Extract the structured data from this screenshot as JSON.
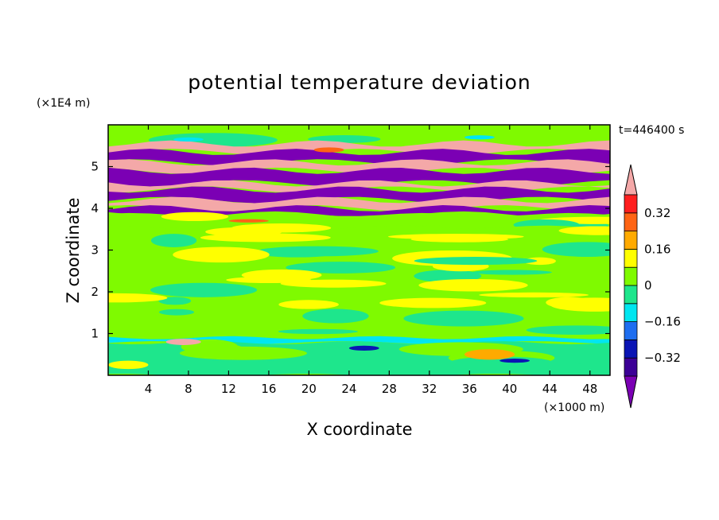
{
  "chart_data": {
    "type": "heatmap",
    "title": "potential temperature deviation",
    "xlabel": "X coordinate",
    "ylabel": "Z coordinate",
    "x_unit": "(×1000 m)",
    "y_unit": "(×1E4 m)",
    "time_label": "t=446400 s",
    "xlim": [
      0,
      50
    ],
    "ylim": [
      0,
      6
    ],
    "x_ticks": [
      4,
      8,
      12,
      16,
      20,
      24,
      28,
      32,
      36,
      40,
      44,
      48
    ],
    "y_ticks": [
      1,
      2,
      3,
      4,
      5
    ],
    "colorbar": {
      "levels": [
        -0.4,
        -0.32,
        -0.24,
        -0.16,
        -0.08,
        0,
        0.08,
        0.16,
        0.24,
        0.32,
        0.4
      ],
      "labeled_ticks": [
        "0.32",
        "0.16",
        "0",
        "−0.16",
        "−0.32"
      ],
      "labeled_values": [
        0.32,
        0.16,
        0,
        -0.16,
        -0.32
      ],
      "colors": [
        "#7b00b4",
        "#3c0096",
        "#0a14b4",
        "#1e6ef0",
        "#00e6f0",
        "#1ee68c",
        "#7ffa00",
        "#ffff00",
        "#ffaa00",
        "#ff6414",
        "#ff1e1e",
        "#f4a8a8"
      ]
    },
    "bands": [
      {
        "z0": 5.95,
        "z1": 6.0,
        "value": 0.04,
        "variation": "wavy"
      },
      {
        "z0": 5.55,
        "z1": 5.95,
        "value": 0.0,
        "variation": "mixed"
      },
      {
        "z0": 5.35,
        "z1": 5.55,
        "value": 0.44,
        "variation": "streaks"
      },
      {
        "z0": 5.1,
        "z1": 5.35,
        "value": -0.44,
        "variation": "streaks"
      },
      {
        "z0": 4.9,
        "z1": 5.1,
        "value": 0.44,
        "variation": "streaks"
      },
      {
        "z0": 4.6,
        "z1": 4.9,
        "value": -0.44,
        "variation": "streaks"
      },
      {
        "z0": 4.45,
        "z1": 4.6,
        "value": 0.44,
        "variation": "streaks"
      },
      {
        "z0": 4.2,
        "z1": 4.45,
        "value": -0.44,
        "variation": "streaks"
      },
      {
        "z0": 4.0,
        "z1": 4.2,
        "value": 0.44,
        "variation": "streaks"
      },
      {
        "z0": 3.85,
        "z1": 4.0,
        "value": -0.44,
        "variation": "streaks"
      },
      {
        "z0": 3.55,
        "z1": 3.85,
        "value": 0.04,
        "variation": "mixed"
      },
      {
        "z0": 0.9,
        "z1": 3.55,
        "value": 0.02,
        "variation": "mixed"
      },
      {
        "z0": 0.78,
        "z1": 0.9,
        "value": -0.1,
        "variation": "thin"
      },
      {
        "z0": 0.0,
        "z1": 0.78,
        "value": -0.02,
        "variation": "mixed"
      }
    ],
    "features": [
      {
        "x": 7.5,
        "z": 0.8,
        "value": 0.44,
        "w": 3.5,
        "h": 0.15
      },
      {
        "x": 25.5,
        "z": 0.65,
        "value": -0.3,
        "w": 3.0,
        "h": 0.12
      },
      {
        "x": 38.0,
        "z": 0.5,
        "value": 0.2,
        "w": 5.0,
        "h": 0.25
      },
      {
        "x": 40.5,
        "z": 0.35,
        "value": -0.3,
        "w": 3.0,
        "h": 0.1
      },
      {
        "x": 2.0,
        "z": 0.25,
        "value": 0.12,
        "w": 4.0,
        "h": 0.2
      },
      {
        "x": 22.0,
        "z": 5.4,
        "value": 0.24,
        "w": 3.0,
        "h": 0.12
      },
      {
        "x": 8.0,
        "z": 5.65,
        "value": -0.14,
        "w": 3.0,
        "h": 0.1
      },
      {
        "x": 37.0,
        "z": 5.7,
        "value": -0.14,
        "w": 3.0,
        "h": 0.1
      },
      {
        "x": 14.0,
        "z": 3.7,
        "value": 0.3,
        "w": 4.0,
        "h": 0.08
      }
    ]
  }
}
